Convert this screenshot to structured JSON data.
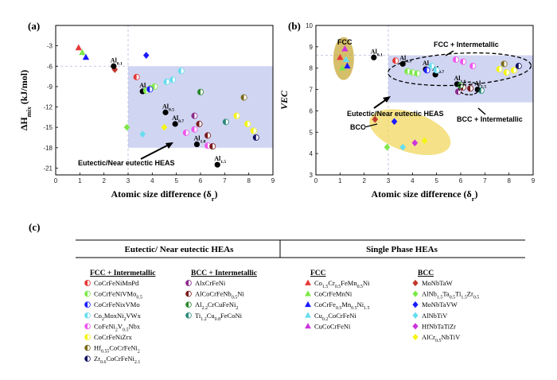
{
  "panel_c": {
    "label": "(c)",
    "left_header": "Eutectic/ Near eutectic HEAs",
    "right_header": "Single Phase HEAs",
    "columns": [
      {
        "title": "FCC + Intermetallic",
        "entries": [
          {
            "text": "CoCrFeNiMnPd",
            "marker": "half-circle",
            "color": "#e53935"
          },
          {
            "text": "CoCrFeNiVMo0.5",
            "marker": "half-circle",
            "color": "#7ee84a"
          },
          {
            "text": "CoCrFeNixVMo",
            "marker": "half-circle",
            "color": "#1a1aff"
          },
          {
            "text": "Co2MoxNi2VWx",
            "marker": "half-circle",
            "color": "#66ddee"
          },
          {
            "text": "CoFeNi2V0.5Nbx",
            "marker": "half-circle",
            "color": "#ee55ee"
          },
          {
            "text": "CoCrFeNiZrx",
            "marker": "half-circle",
            "color": "#f5f514"
          },
          {
            "text": "Hf0.55CoCrFeNi2",
            "marker": "half-circle",
            "color": "#7a6a1a"
          },
          {
            "text": "Zr0.6CoCrFeNi2.1",
            "marker": "half-circle",
            "color": "#101060"
          }
        ]
      },
      {
        "title": "BCC + Intermetallic",
        "entries": [
          {
            "text": "AlxCrFeNi",
            "marker": "half-circle",
            "color": "#8a2a8a"
          },
          {
            "text": "AlCoCrFeNb0.5Ni",
            "marker": "half-circle",
            "color": "#7a1a1a"
          },
          {
            "text": "Al2.2CrCuFeNi2",
            "marker": "half-circle",
            "color": "#2a8a2a"
          },
          {
            "text": "Ti1.2Cu0.8FeCoNi",
            "marker": "half-circle",
            "color": "#2a8a7a"
          }
        ]
      },
      {
        "title": "FCC",
        "entries": [
          {
            "text": "Co1.5Cr0.5FeMn0.5Ni",
            "marker": "triangle",
            "color": "#e53935"
          },
          {
            "text": "CoCrFeMnNi",
            "marker": "triangle",
            "color": "#7ee84a"
          },
          {
            "text": "CoCrFe0.5Mn0.5Ni1.5",
            "marker": "triangle",
            "color": "#1a1aff"
          },
          {
            "text": "Cu0.2CoCrFeNi",
            "marker": "triangle",
            "color": "#66ddee"
          },
          {
            "text": "CuCoCrFeNi",
            "marker": "triangle",
            "color": "#cc33dd"
          }
        ]
      },
      {
        "title": "BCC",
        "entries": [
          {
            "text": "MoNbTaW",
            "marker": "diamond",
            "color": "#c0392b"
          },
          {
            "text": "AlNb1.5Ta0.5Ti1.5Zr0.5",
            "marker": "diamond",
            "color": "#7ee84a"
          },
          {
            "text": "MoNbTaVW",
            "marker": "diamond",
            "color": "#1a1aff"
          },
          {
            "text": "AlNbTiV",
            "marker": "diamond",
            "color": "#66ddee"
          },
          {
            "text": "HfNbTaTiZr",
            "marker": "diamond",
            "color": "#cc33dd"
          },
          {
            "text": "AlCr0.5NbTiV",
            "marker": "diamond",
            "color": "#f5f514"
          }
        ]
      }
    ]
  },
  "chart_data": [
    {
      "type": "scatter",
      "panel_label": "(a)",
      "title": "",
      "xlabel": "Atomic size difference (δr)",
      "ylabel": "ΔHmix (kJ/mol)",
      "xlim": [
        0,
        9
      ],
      "ylim": [
        -22,
        0
      ],
      "xticks": [
        0,
        1,
        2,
        3,
        4,
        5,
        6,
        7,
        8,
        9
      ],
      "yticks": [
        -21,
        -18,
        -15,
        -12,
        -9,
        -6,
        -3
      ],
      "shaded_region": {
        "x": [
          3,
          9
        ],
        "y": [
          -18,
          -6
        ],
        "color": "#c8cef0"
      },
      "annotation": "Eutectic/Near eutectic HEAS",
      "points": [
        {
          "x": 0.95,
          "y": -3.3,
          "marker": "triangle",
          "color": "#e53935"
        },
        {
          "x": 1.1,
          "y": -4.0,
          "marker": "triangle",
          "color": "#7ee84a"
        },
        {
          "x": 1.25,
          "y": -4.7,
          "marker": "triangle",
          "color": "#1a1aff"
        },
        {
          "x": 2.45,
          "y": -6.5,
          "marker": "diamond",
          "color": "#c0392b"
        },
        {
          "x": 2.95,
          "y": -15.0,
          "marker": "diamond",
          "color": "#7ee84a"
        },
        {
          "x": 3.75,
          "y": -4.4,
          "marker": "diamond",
          "color": "#1a1aff"
        },
        {
          "x": 3.6,
          "y": -16.0,
          "marker": "diamond",
          "color": "#66ddee"
        },
        {
          "x": 4.5,
          "y": -15.0,
          "marker": "diamond",
          "color": "#f5f514"
        },
        {
          "x": 2.4,
          "y": -6.0,
          "marker": "circle",
          "color": "#000000",
          "label": "Al0.1"
        },
        {
          "x": 3.6,
          "y": -9.7,
          "marker": "circle",
          "color": "#000000",
          "label": "Al0.3"
        },
        {
          "x": 4.55,
          "y": -12.8,
          "marker": "circle",
          "color": "#000000",
          "label": "Al0.5"
        },
        {
          "x": 4.95,
          "y": -14.5,
          "marker": "circle",
          "color": "#000000",
          "label": "Al0.7"
        },
        {
          "x": 5.85,
          "y": -17.5,
          "marker": "circle",
          "color": "#000000",
          "label": "Al1.0"
        },
        {
          "x": 6.7,
          "y": -20.5,
          "marker": "circle",
          "color": "#000000",
          "label": "Al1.5"
        },
        {
          "x": 3.35,
          "y": -7.6,
          "marker": "half-circle",
          "color": "#e53935"
        },
        {
          "x": 3.75,
          "y": -9.6,
          "marker": "half-circle",
          "color": "#7ee84a"
        },
        {
          "x": 3.95,
          "y": -9.2,
          "marker": "half-circle",
          "color": "#7ee84a"
        },
        {
          "x": 4.1,
          "y": -9.0,
          "marker": "half-circle",
          "color": "#7ee84a"
        },
        {
          "x": 4.6,
          "y": -8.3,
          "marker": "half-circle",
          "color": "#66ddee"
        },
        {
          "x": 4.85,
          "y": -8.0,
          "marker": "half-circle",
          "color": "#66ddee"
        },
        {
          "x": 5.2,
          "y": -6.7,
          "marker": "half-circle",
          "color": "#66ddee"
        },
        {
          "x": 3.9,
          "y": -9.4,
          "marker": "half-circle",
          "color": "#1a1aff"
        },
        {
          "x": 5.4,
          "y": -15.8,
          "marker": "half-circle",
          "color": "#ee55ee"
        },
        {
          "x": 5.75,
          "y": -15.3,
          "marker": "half-circle",
          "color": "#ee55ee"
        },
        {
          "x": 6.3,
          "y": -17.7,
          "marker": "half-circle",
          "color": "#ee55ee"
        },
        {
          "x": 5.75,
          "y": -13.3,
          "marker": "half-circle",
          "color": "#8a2a8a"
        },
        {
          "x": 5.95,
          "y": -14.5,
          "marker": "half-circle",
          "color": "#7a1a1a"
        },
        {
          "x": 6.3,
          "y": -16.2,
          "marker": "half-circle",
          "color": "#7a1a1a"
        },
        {
          "x": 6.5,
          "y": -17.8,
          "marker": "half-circle",
          "color": "#7a1a1a"
        },
        {
          "x": 6.0,
          "y": -9.8,
          "marker": "half-circle",
          "color": "#2a8a2a"
        },
        {
          "x": 7.05,
          "y": -14.2,
          "marker": "half-circle",
          "color": "#2a8a7a"
        },
        {
          "x": 7.5,
          "y": -13.3,
          "marker": "half-circle",
          "color": "#f5f514"
        },
        {
          "x": 7.95,
          "y": -14.5,
          "marker": "half-circle",
          "color": "#f5f514"
        },
        {
          "x": 8.2,
          "y": -15.5,
          "marker": "half-circle",
          "color": "#f5f514"
        },
        {
          "x": 8.3,
          "y": -16.5,
          "marker": "half-circle",
          "color": "#101060"
        },
        {
          "x": 7.8,
          "y": -10.6,
          "marker": "half-circle",
          "color": "#7a6a1a"
        }
      ]
    },
    {
      "type": "scatter",
      "panel_label": "(b)",
      "title": "",
      "xlabel": "Atomic size difference (δr)",
      "ylabel": "VEC",
      "xlim": [
        0,
        9
      ],
      "ylim": [
        3,
        10
      ],
      "xticks": [
        0,
        1,
        2,
        3,
        4,
        5,
        6,
        7,
        8,
        9
      ],
      "yticks": [
        3,
        4,
        5,
        6,
        7,
        8,
        9,
        10
      ],
      "shaded_region": {
        "x": [
          3,
          9
        ],
        "y": [
          6.4,
          8.6
        ],
        "color": "#c8cef0"
      },
      "annotations": [
        "FCC",
        "BCC",
        "FCC + Intermetallic",
        "BCC + Intermetallic",
        "Eutectic/Near eutectic HEAS"
      ],
      "points": [
        {
          "x": 1.0,
          "y": 8.5,
          "marker": "triangle",
          "color": "#e53935"
        },
        {
          "x": 1.2,
          "y": 8.9,
          "marker": "triangle",
          "color": "#cc33dd"
        },
        {
          "x": 1.25,
          "y": 8.4,
          "marker": "triangle",
          "color": "#66ddee"
        },
        {
          "x": 1.3,
          "y": 8.1,
          "marker": "triangle",
          "color": "#1a1aff"
        },
        {
          "x": 1.1,
          "y": 8.0,
          "marker": "triangle",
          "color": "#7ee84a"
        },
        {
          "x": 2.45,
          "y": 5.6,
          "marker": "diamond",
          "color": "#c0392b"
        },
        {
          "x": 2.95,
          "y": 4.3,
          "marker": "diamond",
          "color": "#7ee84a"
        },
        {
          "x": 3.25,
          "y": 5.5,
          "marker": "diamond",
          "color": "#1a1aff"
        },
        {
          "x": 3.6,
          "y": 4.3,
          "marker": "diamond",
          "color": "#66ddee"
        },
        {
          "x": 4.1,
          "y": 4.5,
          "marker": "diamond",
          "color": "#cc33dd"
        },
        {
          "x": 4.5,
          "y": 4.6,
          "marker": "diamond",
          "color": "#f5f514"
        },
        {
          "x": 2.4,
          "y": 8.5,
          "marker": "circle",
          "color": "#000000",
          "label": "Al0.1"
        },
        {
          "x": 3.6,
          "y": 8.2,
          "marker": "circle",
          "color": "#000000",
          "label": "Al0.3"
        },
        {
          "x": 4.55,
          "y": 7.95,
          "marker": "circle",
          "color": "#000000",
          "label": "Al0.5"
        },
        {
          "x": 4.95,
          "y": 7.7,
          "marker": "circle",
          "color": "#000000",
          "label": "Al0.7"
        },
        {
          "x": 5.85,
          "y": 7.25,
          "marker": "circle",
          "color": "#000000",
          "label": "Al1.0"
        },
        {
          "x": 6.7,
          "y": 7.0,
          "marker": "circle",
          "color": "#000000",
          "label": "Al1.5"
        },
        {
          "x": 3.3,
          "y": 8.35,
          "marker": "half-circle",
          "color": "#e53935"
        },
        {
          "x": 3.8,
          "y": 7.85,
          "marker": "half-circle",
          "color": "#7ee84a"
        },
        {
          "x": 4.0,
          "y": 7.8,
          "marker": "half-circle",
          "color": "#7ee84a"
        },
        {
          "x": 4.2,
          "y": 7.75,
          "marker": "half-circle",
          "color": "#7ee84a"
        },
        {
          "x": 4.6,
          "y": 7.9,
          "marker": "half-circle",
          "color": "#1a1aff"
        },
        {
          "x": 4.8,
          "y": 8.1,
          "marker": "half-circle",
          "color": "#66ddee"
        },
        {
          "x": 5.0,
          "y": 7.9,
          "marker": "half-circle",
          "color": "#66ddee"
        },
        {
          "x": 5.8,
          "y": 8.4,
          "marker": "half-circle",
          "color": "#ee55ee"
        },
        {
          "x": 6.1,
          "y": 8.3,
          "marker": "half-circle",
          "color": "#ee55ee"
        },
        {
          "x": 6.5,
          "y": 8.1,
          "marker": "half-circle",
          "color": "#ee55ee"
        },
        {
          "x": 5.9,
          "y": 6.9,
          "marker": "half-circle",
          "color": "#8a2a8a"
        },
        {
          "x": 6.1,
          "y": 7.1,
          "marker": "half-circle",
          "color": "#7a1a1a"
        },
        {
          "x": 6.4,
          "y": 7.05,
          "marker": "half-circle",
          "color": "#7a1a1a"
        },
        {
          "x": 6.0,
          "y": 7.2,
          "marker": "half-circle",
          "color": "#2a8a2a"
        },
        {
          "x": 6.85,
          "y": 6.95,
          "marker": "half-circle",
          "color": "#2a8a7a"
        },
        {
          "x": 7.6,
          "y": 7.95,
          "marker": "half-circle",
          "color": "#f5f514"
        },
        {
          "x": 7.9,
          "y": 7.8,
          "marker": "half-circle",
          "color": "#f5f514"
        },
        {
          "x": 8.2,
          "y": 7.9,
          "marker": "half-circle",
          "color": "#f5f514"
        },
        {
          "x": 7.8,
          "y": 8.2,
          "marker": "half-circle",
          "color": "#7a6a1a"
        },
        {
          "x": 8.4,
          "y": 8.1,
          "marker": "half-circle",
          "color": "#101060"
        }
      ]
    }
  ]
}
